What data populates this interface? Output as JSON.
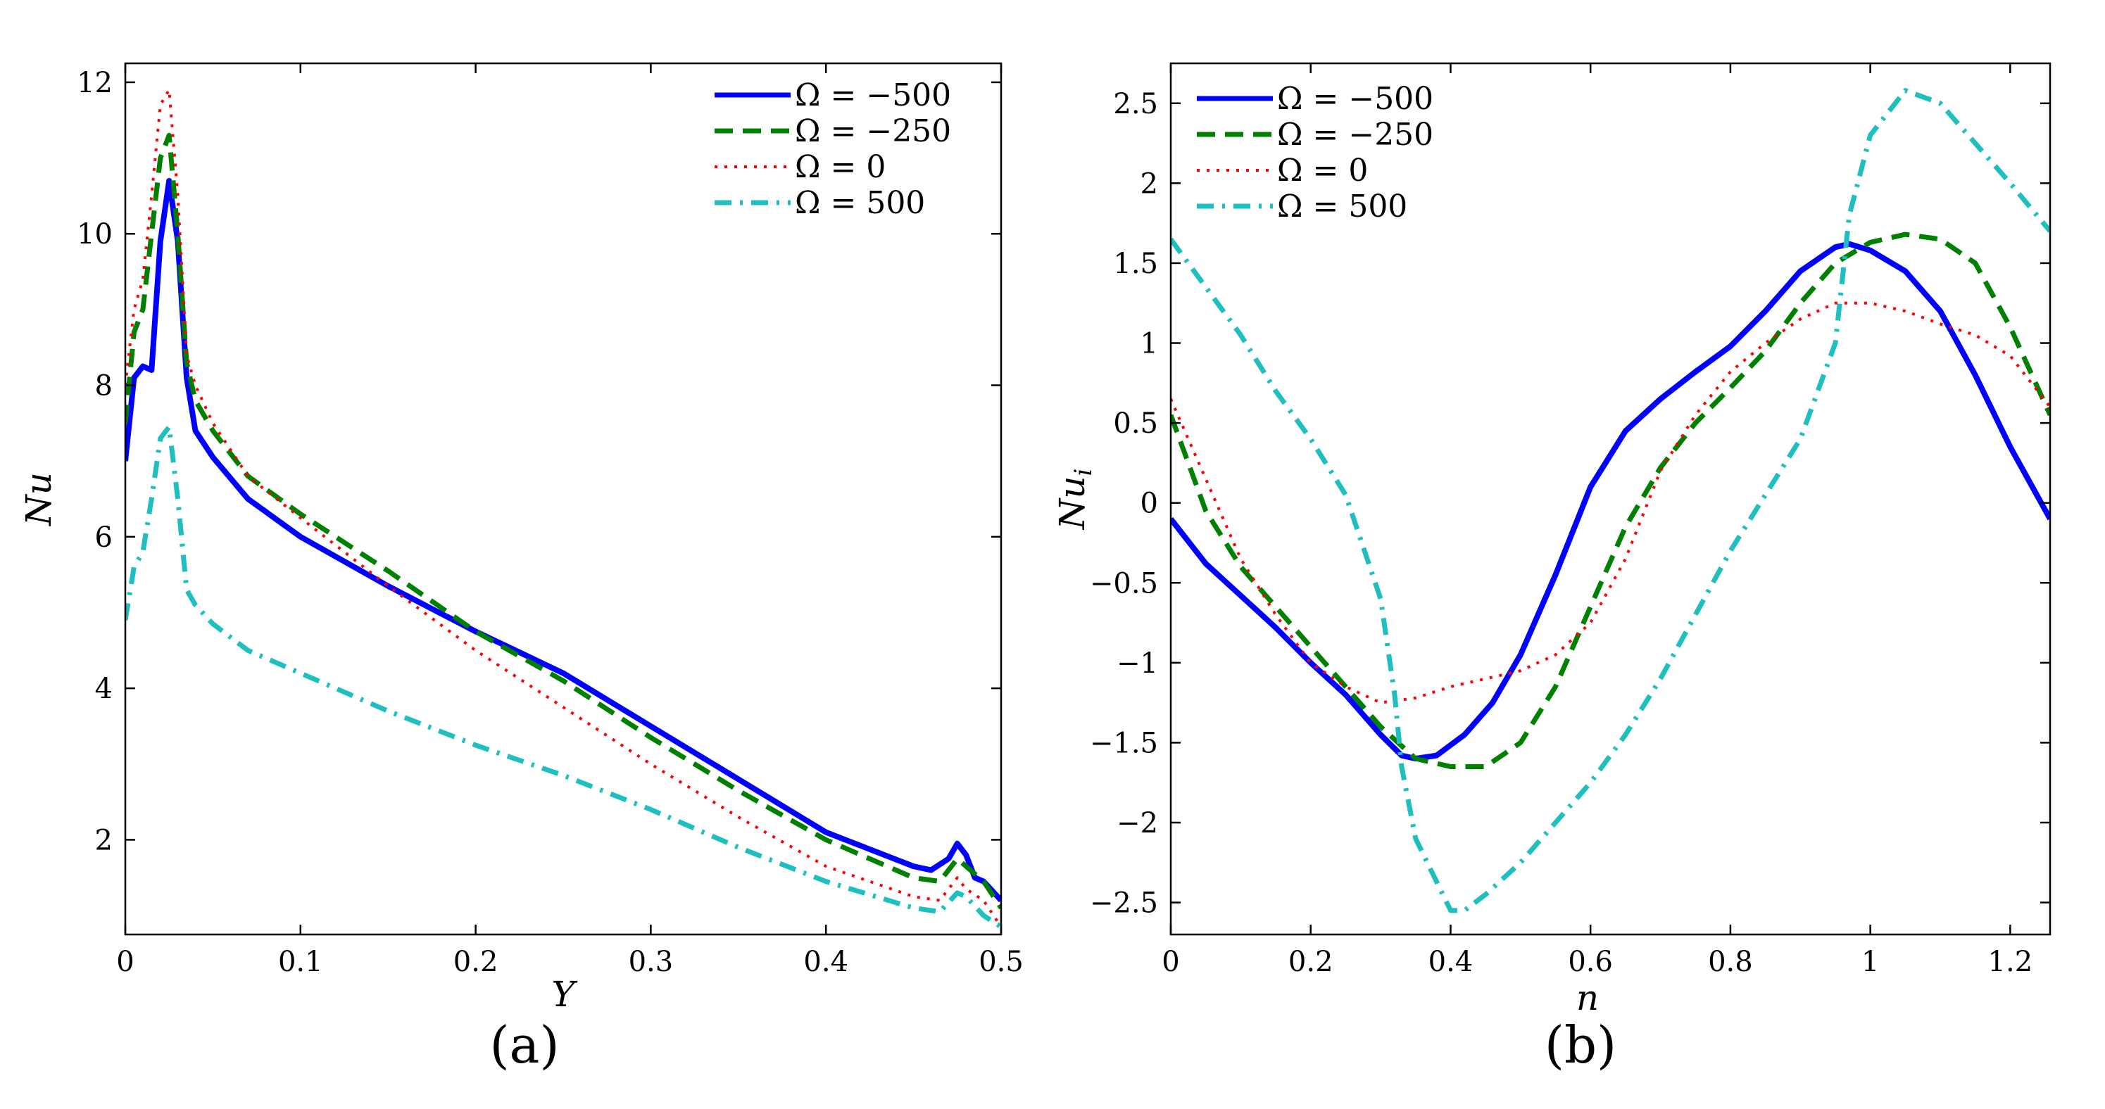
{
  "chart_data": [
    {
      "type": "line",
      "panel_label": "(a)",
      "xlabel": "Y",
      "ylabel": "Nu",
      "xlim": [
        0,
        0.5
      ],
      "ylim": [
        0.75,
        12.25
      ],
      "xticks": [
        0,
        0.1,
        0.2,
        0.3,
        0.4,
        0.5
      ],
      "xtick_labels": [
        "0",
        "0.1",
        "0.2",
        "0.3",
        "0.4",
        "0.5"
      ],
      "yticks": [
        2,
        4,
        6,
        8,
        10,
        12
      ],
      "ytick_labels": [
        "2",
        "4",
        "6",
        "8",
        "10",
        "12"
      ],
      "legend_position": "top-right",
      "series": [
        {
          "name": "Ω = −500",
          "color": "#0000ff",
          "style": "solid",
          "x": [
            0,
            0.005,
            0.01,
            0.015,
            0.02,
            0.025,
            0.03,
            0.035,
            0.04,
            0.05,
            0.07,
            0.1,
            0.15,
            0.2,
            0.25,
            0.3,
            0.35,
            0.4,
            0.45,
            0.46,
            0.47,
            0.475,
            0.48,
            0.485,
            0.49,
            0.5
          ],
          "y": [
            7.0,
            8.1,
            8.25,
            8.2,
            9.9,
            10.7,
            9.9,
            8.1,
            7.4,
            7.05,
            6.5,
            6.0,
            5.35,
            4.75,
            4.2,
            3.5,
            2.8,
            2.1,
            1.65,
            1.6,
            1.75,
            1.95,
            1.8,
            1.5,
            1.45,
            1.2
          ]
        },
        {
          "name": "Ω = −250",
          "color": "#008000",
          "style": "dashed",
          "x": [
            0,
            0.005,
            0.01,
            0.015,
            0.02,
            0.025,
            0.03,
            0.035,
            0.04,
            0.05,
            0.07,
            0.1,
            0.15,
            0.2,
            0.25,
            0.3,
            0.35,
            0.4,
            0.45,
            0.465,
            0.475,
            0.48,
            0.49,
            0.5
          ],
          "y": [
            7.5,
            8.7,
            9.0,
            10.0,
            11.0,
            11.3,
            10.0,
            8.3,
            7.8,
            7.4,
            6.8,
            6.3,
            5.55,
            4.75,
            4.1,
            3.35,
            2.65,
            2.0,
            1.5,
            1.45,
            1.75,
            1.65,
            1.45,
            1.1
          ]
        },
        {
          "name": "Ω = 0",
          "color": "#ff0000",
          "style": "dotted",
          "x": [
            0,
            0.005,
            0.01,
            0.015,
            0.02,
            0.025,
            0.03,
            0.035,
            0.04,
            0.05,
            0.07,
            0.1,
            0.15,
            0.2,
            0.25,
            0.3,
            0.35,
            0.4,
            0.45,
            0.465,
            0.475,
            0.48,
            0.49,
            0.5
          ],
          "y": [
            8.0,
            9.0,
            9.4,
            10.5,
            11.7,
            11.9,
            10.5,
            8.4,
            8.0,
            7.5,
            6.8,
            6.25,
            5.35,
            4.5,
            3.75,
            3.0,
            2.3,
            1.65,
            1.25,
            1.2,
            1.5,
            1.35,
            1.2,
            0.85
          ]
        },
        {
          "name": "Ω = 500",
          "color": "#1fbfbf",
          "style": "dashdot",
          "x": [
            0,
            0.005,
            0.01,
            0.015,
            0.02,
            0.025,
            0.03,
            0.035,
            0.04,
            0.05,
            0.07,
            0.1,
            0.15,
            0.2,
            0.25,
            0.3,
            0.35,
            0.4,
            0.45,
            0.465,
            0.475,
            0.48,
            0.49,
            0.5
          ],
          "y": [
            4.9,
            5.6,
            5.8,
            6.5,
            7.3,
            7.45,
            6.5,
            5.3,
            5.1,
            4.85,
            4.5,
            4.2,
            3.7,
            3.25,
            2.85,
            2.4,
            1.9,
            1.45,
            1.1,
            1.05,
            1.3,
            1.25,
            1.0,
            0.85
          ]
        }
      ]
    },
    {
      "type": "line",
      "panel_label": "(b)",
      "xlabel": "n",
      "ylabel": "Nu_i",
      "xlim": [
        0,
        1.257
      ],
      "ylim": [
        -2.7,
        2.75
      ],
      "xticks": [
        0,
        0.2,
        0.4,
        0.6,
        0.8,
        1,
        1.2
      ],
      "xtick_labels": [
        "0",
        "0.2",
        "0.4",
        "0.6",
        "0.8",
        "1",
        "1.2"
      ],
      "yticks": [
        -2.5,
        -2,
        -1.5,
        -1,
        -0.5,
        0,
        0.5,
        1,
        1.5,
        2,
        2.5
      ],
      "ytick_labels": [
        "-2.5",
        "-2",
        "-1.5",
        "-1",
        "-0.5",
        "0",
        "0.5",
        "1",
        "1.5",
        "2",
        "2.5"
      ],
      "legend_position": "top-left",
      "series": [
        {
          "name": "Ω = −500",
          "color": "#0000ff",
          "style": "solid",
          "x": [
            0,
            0.05,
            0.1,
            0.15,
            0.2,
            0.25,
            0.3,
            0.33,
            0.35,
            0.38,
            0.42,
            0.46,
            0.5,
            0.55,
            0.6,
            0.65,
            0.7,
            0.75,
            0.8,
            0.85,
            0.9,
            0.95,
            0.97,
            1.0,
            1.05,
            1.1,
            1.15,
            1.2,
            1.257
          ],
          "y": [
            -0.1,
            -0.38,
            -0.58,
            -0.78,
            -1.0,
            -1.2,
            -1.45,
            -1.58,
            -1.6,
            -1.58,
            -1.45,
            -1.25,
            -0.95,
            -0.45,
            0.1,
            0.45,
            0.65,
            0.82,
            0.98,
            1.2,
            1.45,
            1.6,
            1.62,
            1.58,
            1.45,
            1.2,
            0.8,
            0.35,
            -0.1
          ]
        },
        {
          "name": "Ω = −250",
          "color": "#008000",
          "style": "dashed",
          "x": [
            0,
            0.05,
            0.1,
            0.15,
            0.2,
            0.25,
            0.3,
            0.35,
            0.4,
            0.45,
            0.5,
            0.55,
            0.6,
            0.65,
            0.7,
            0.75,
            0.8,
            0.85,
            0.9,
            0.95,
            1.0,
            1.05,
            1.1,
            1.15,
            1.2,
            1.257
          ],
          "y": [
            0.55,
            -0.05,
            -0.4,
            -0.65,
            -0.9,
            -1.15,
            -1.4,
            -1.6,
            -1.65,
            -1.65,
            -1.5,
            -1.15,
            -0.65,
            -0.15,
            0.22,
            0.5,
            0.72,
            0.95,
            1.25,
            1.5,
            1.63,
            1.68,
            1.65,
            1.5,
            1.1,
            0.55
          ]
        },
        {
          "name": "Ω = 0",
          "color": "#ff0000",
          "style": "dotted",
          "x": [
            0,
            0.05,
            0.1,
            0.15,
            0.2,
            0.25,
            0.3,
            0.35,
            0.4,
            0.45,
            0.5,
            0.55,
            0.6,
            0.65,
            0.7,
            0.75,
            0.8,
            0.85,
            0.9,
            0.95,
            1.0,
            1.05,
            1.1,
            1.15,
            1.2,
            1.257
          ],
          "y": [
            0.65,
            0.15,
            -0.35,
            -0.7,
            -1.0,
            -1.15,
            -1.25,
            -1.22,
            -1.15,
            -1.1,
            -1.05,
            -0.95,
            -0.75,
            -0.35,
            0.2,
            0.55,
            0.82,
            1.0,
            1.15,
            1.25,
            1.25,
            1.2,
            1.12,
            1.05,
            0.92,
            0.6
          ]
        },
        {
          "name": "Ω = 500",
          "color": "#1fbfbf",
          "style": "dashdot",
          "x": [
            0,
            0.05,
            0.1,
            0.15,
            0.2,
            0.25,
            0.3,
            0.32,
            0.33,
            0.35,
            0.4,
            0.42,
            0.45,
            0.5,
            0.55,
            0.6,
            0.65,
            0.7,
            0.75,
            0.8,
            0.85,
            0.9,
            0.95,
            0.97,
            1.0,
            1.05,
            1.1,
            1.15,
            1.2,
            1.257
          ],
          "y": [
            1.65,
            1.35,
            1.05,
            0.7,
            0.4,
            0.05,
            -0.6,
            -1.2,
            -1.65,
            -2.1,
            -2.55,
            -2.55,
            -2.45,
            -2.25,
            -2.0,
            -1.75,
            -1.45,
            -1.1,
            -0.7,
            -0.3,
            0.05,
            0.4,
            1.0,
            1.8,
            2.3,
            2.58,
            2.5,
            2.25,
            2.0,
            1.7
          ]
        }
      ]
    }
  ]
}
